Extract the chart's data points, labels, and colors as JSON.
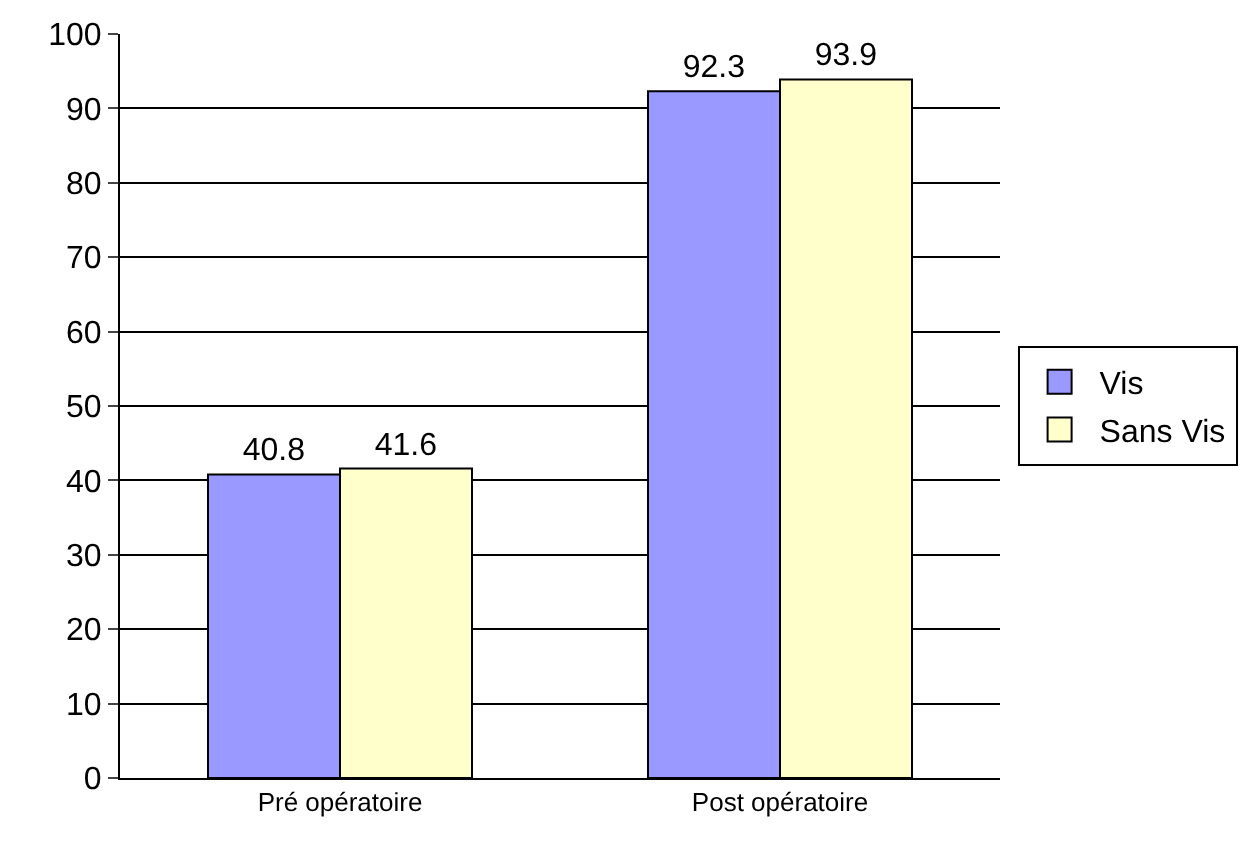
{
  "chart_data": {
    "type": "bar",
    "categories": [
      "Pré opératoire",
      "Post opératoire"
    ],
    "series": [
      {
        "name": "Vis",
        "color": "#9999ff",
        "values": [
          40.8,
          92.3
        ]
      },
      {
        "name": "Sans Vis",
        "color": "#ffffcc",
        "values": [
          41.6,
          93.9
        ]
      }
    ],
    "ylim": [
      0,
      100
    ],
    "yticks": [
      0,
      10,
      20,
      30,
      40,
      50,
      60,
      70,
      80,
      90,
      100
    ],
    "grid": "y",
    "legend": "right",
    "data_labels": true
  }
}
